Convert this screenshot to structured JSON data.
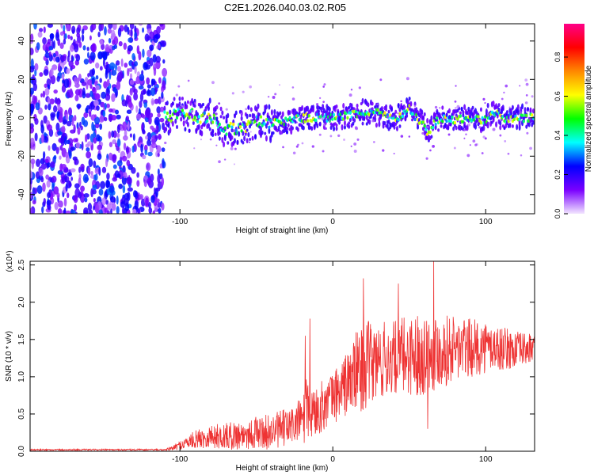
{
  "title": "C2E1.2026.040.03.02.R05",
  "chart_data": [
    {
      "type": "heatmap",
      "xlabel": "Height of straight line (km)",
      "ylabel": "Frequency (Hz)",
      "xlim": [
        -198,
        132
      ],
      "ylim": [
        -50,
        49
      ],
      "xticks": [
        -100,
        0,
        100
      ],
      "yticks": [
        -40,
        -20,
        0,
        20,
        40
      ],
      "colorbar": {
        "label": "Normalized spectral amplitude",
        "range": [
          0,
          0.97
        ],
        "ticks": [
          "0.0",
          "0.2",
          "0.4",
          "0.6",
          "0.8"
        ],
        "colors": [
          "#f2e6ff",
          "#7a00ff",
          "#0000ff",
          "#00ffff",
          "#00ff00",
          "#ffff00",
          "#ff8800",
          "#ff0000",
          "#ff0088"
        ]
      },
      "noise_region_x": [
        -198,
        -110
      ],
      "ridge": {
        "x": [
          -110,
          -100,
          -90,
          -80,
          -70,
          -60,
          -50,
          -40,
          -30,
          -20,
          -10,
          0,
          10,
          20,
          30,
          40,
          50,
          55,
          60,
          62,
          70,
          80,
          90,
          100,
          105,
          110,
          120,
          132
        ],
        "y": [
          0,
          2,
          1,
          0,
          -6,
          -5,
          -2,
          -3,
          -2,
          0,
          0,
          0,
          1,
          3,
          2,
          -1,
          5,
          0,
          -3,
          -7,
          0,
          -1,
          0,
          -1,
          4,
          0,
          0,
          0
        ]
      }
    },
    {
      "type": "line",
      "xlabel": "Height of straight line (km)",
      "ylabel": "SNR (10 * v/v)",
      "multiplier": "(x10⁴)",
      "xlim": [
        -198,
        132
      ],
      "ylim": [
        0,
        2.55
      ],
      "xticks": [
        -100,
        0,
        100
      ],
      "yticks": [
        0,
        0.5,
        1.0,
        1.5,
        2.0,
        2.5
      ],
      "ytick_labels": [
        "0.0",
        "0.5",
        "1.0",
        "1.5",
        "2.0",
        "2.5"
      ],
      "series": [
        {
          "color": "#ee3333",
          "envelope_x": [
            -198,
            -110,
            -105,
            -100,
            -90,
            -80,
            -70,
            -60,
            -50,
            -40,
            -30,
            -25,
            -20,
            -18,
            -15,
            -10,
            0,
            10,
            15,
            20,
            30,
            40,
            50,
            60,
            70,
            80,
            90,
            100,
            110,
            120,
            132
          ],
          "envelope_mean": [
            0.02,
            0.02,
            0.04,
            0.08,
            0.16,
            0.2,
            0.2,
            0.22,
            0.25,
            0.26,
            0.32,
            0.36,
            0.45,
            0.5,
            0.5,
            0.55,
            0.72,
            0.92,
            1.05,
            1.15,
            1.2,
            1.25,
            1.3,
            1.3,
            1.35,
            1.38,
            1.38,
            1.4,
            1.38,
            1.36,
            1.38
          ],
          "envelope_spread": [
            0.01,
            0.01,
            0.03,
            0.06,
            0.12,
            0.16,
            0.18,
            0.2,
            0.22,
            0.24,
            0.26,
            0.28,
            0.3,
            0.5,
            0.4,
            0.35,
            0.35,
            0.45,
            0.55,
            0.6,
            0.55,
            0.5,
            0.55,
            0.55,
            0.5,
            0.45,
            0.4,
            0.35,
            0.3,
            0.25,
            0.2
          ],
          "peaks": [
            {
              "x": -18,
              "y": 1.55
            },
            {
              "x": -15,
              "y": 1.78
            },
            {
              "x": 20,
              "y": 2.32
            },
            {
              "x": 43,
              "y": 2.25
            },
            {
              "x": 66,
              "y": 2.55
            },
            {
              "x": 62,
              "y": 0.3
            }
          ]
        }
      ]
    }
  ]
}
